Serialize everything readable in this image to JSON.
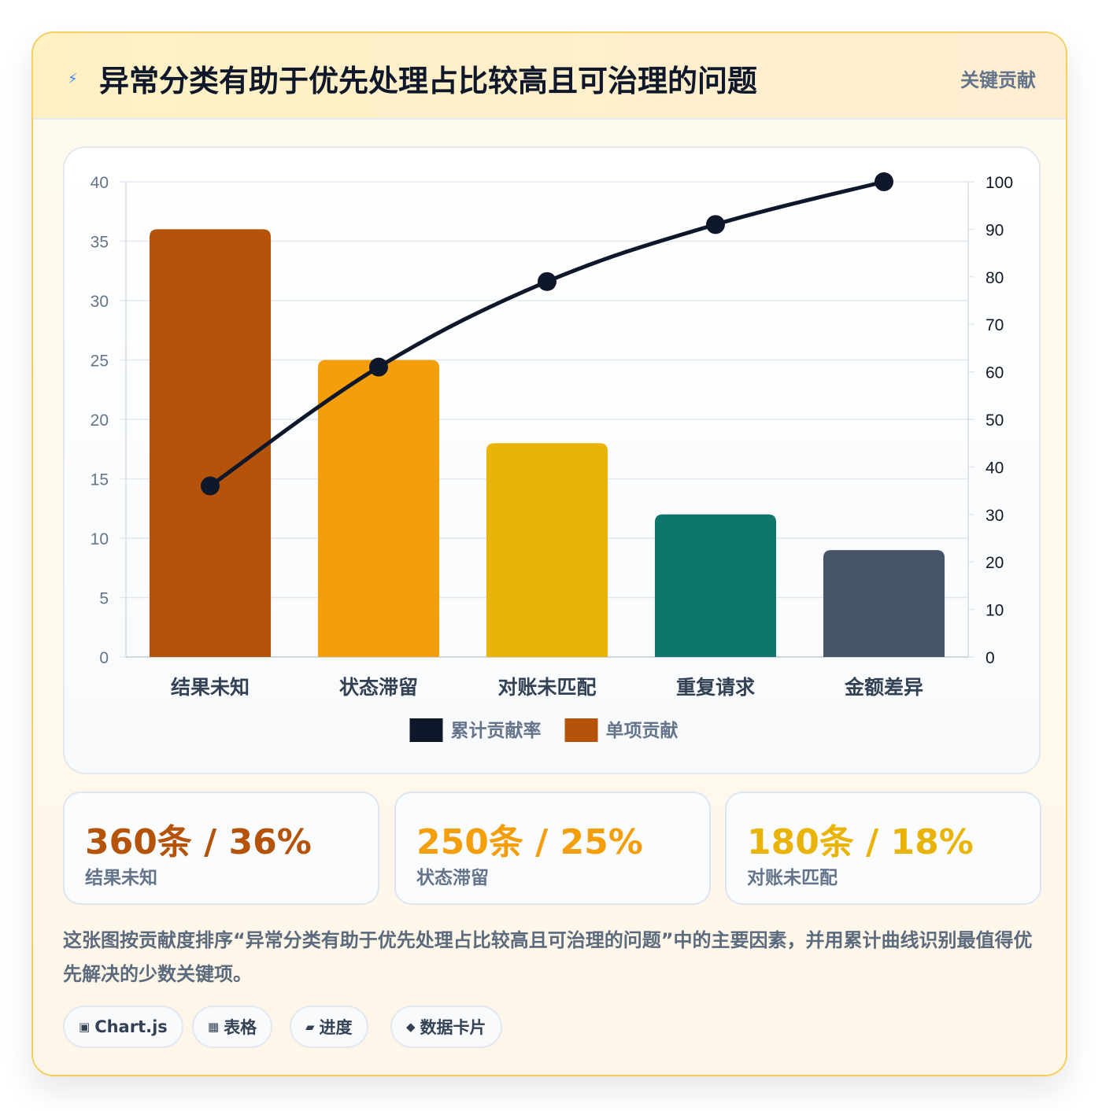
{
  "header": {
    "title": "异常分类有助于优先处理占比较高且可治理的问题",
    "badge": "关键贡献",
    "icon": "lightning-icon"
  },
  "chart_data": {
    "type": "bar",
    "categories": [
      "结果未知",
      "状态滞留",
      "对账未匹配",
      "重复请求",
      "金额差异"
    ],
    "series": [
      {
        "name": "单项贡献",
        "type": "bar",
        "axis": "left",
        "values": [
          36,
          25,
          18,
          12,
          9
        ],
        "colors": [
          "#b45309",
          "#f59e0b",
          "#eab308",
          "#0f766e",
          "#475569"
        ]
      },
      {
        "name": "累计贡献率",
        "type": "line",
        "axis": "right",
        "values": [
          36,
          61,
          79,
          91,
          100
        ],
        "color": "#0f172a"
      }
    ],
    "yleft": {
      "ylim": [
        0,
        40
      ],
      "ticks": [
        0,
        5,
        10,
        15,
        20,
        25,
        30,
        35,
        40
      ]
    },
    "yright": {
      "ylim": [
        0,
        100
      ],
      "ticks": [
        0,
        10,
        20,
        30,
        40,
        50,
        60,
        70,
        80,
        90,
        100
      ]
    },
    "legend": {
      "position": "bottom",
      "order": [
        "累计贡献率",
        "单项贡献"
      ]
    },
    "grid": true
  },
  "stats": [
    {
      "value": "360条 / 36%",
      "label": "结果未知",
      "color": "#b45309"
    },
    {
      "value": "250条 / 25%",
      "label": "状态滞留",
      "color": "#f59e0b"
    },
    {
      "value": "180条 / 18%",
      "label": "对账未匹配",
      "color": "#eab308"
    }
  ],
  "description": "这张图按贡献度排序“异常分类有助于优先处理占比较高且可治理的问题”中的主要因素，并用累计曲线识别最值得优先解决的少数关键项。",
  "tags": [
    {
      "icon": "square-icon",
      "glyph": "▣",
      "label": "Chart.js"
    },
    {
      "icon": "table-icon",
      "glyph": "▦",
      "label": "表格"
    },
    {
      "icon": "progress-icon",
      "glyph": "▰",
      "label": "进度"
    },
    {
      "icon": "diamond-icon",
      "glyph": "◆",
      "label": "数据卡片"
    }
  ]
}
